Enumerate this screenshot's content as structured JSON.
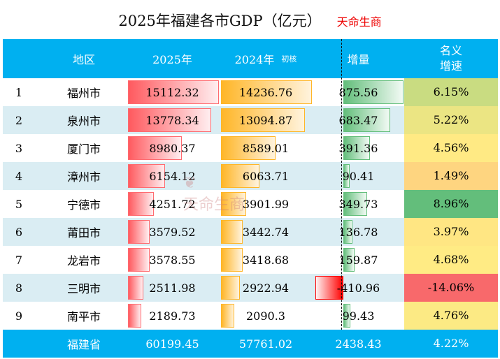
{
  "title": "2025年福建各市GDP（亿元）",
  "brand": "天命生商",
  "headers": {
    "rank": "",
    "region": "地区",
    "y2025": "2025年",
    "y2024": "2024年",
    "y2024_note": "初核",
    "increase": "增量",
    "rate_line1": "名义",
    "rate_line2": "增速"
  },
  "rows": [
    {
      "rank": "1",
      "region": "福州市",
      "y2025": "15112.32",
      "y2024": "14236.76",
      "increase": "875.56",
      "rate": "6.15%"
    },
    {
      "rank": "2",
      "region": "泉州市",
      "y2025": "13778.34",
      "y2024": "13094.87",
      "increase": "683.47",
      "rate": "5.22%"
    },
    {
      "rank": "3",
      "region": "厦门市",
      "y2025": "8980.37",
      "y2024": "8589.01",
      "increase": "391.36",
      "rate": "4.56%"
    },
    {
      "rank": "4",
      "region": "漳州市",
      "y2025": "6154.12",
      "y2024": "6063.71",
      "increase": "90.41",
      "rate": "1.49%"
    },
    {
      "rank": "5",
      "region": "宁德市",
      "y2025": "4251.72",
      "y2024": "3901.99",
      "increase": "349.73",
      "rate": "8.96%"
    },
    {
      "rank": "6",
      "region": "莆田市",
      "y2025": "3579.52",
      "y2024": "3442.74",
      "increase": "136.78",
      "rate": "3.97%"
    },
    {
      "rank": "7",
      "region": "龙岩市",
      "y2025": "3578.55",
      "y2024": "3418.68",
      "increase": "159.87",
      "rate": "4.68%"
    },
    {
      "rank": "8",
      "region": "三明市",
      "y2025": "2511.98",
      "y2024": "2922.94",
      "increase": "-410.96",
      "rate": "-14.06%"
    },
    {
      "rank": "9",
      "region": "南平市",
      "y2025": "2189.73",
      "y2024": "2090.3",
      "increase": "99.43",
      "rate": "4.76%"
    }
  ],
  "total": {
    "region": "福建省",
    "y2025": "60199.45",
    "y2024": "57761.02",
    "increase": "2438.43",
    "rate": "4.22%"
  },
  "colors": {
    "header": "#00b0f0",
    "alt_row": "#daedf3",
    "bar2025": "#ff5a5f",
    "bar2024": "#ffb628",
    "bar_pos": "#63be7b",
    "bar_neg": "#ff0000",
    "scale_min": "#f8696b",
    "scale_mid": "#ffeb84",
    "scale_max": "#63be7b"
  }
}
